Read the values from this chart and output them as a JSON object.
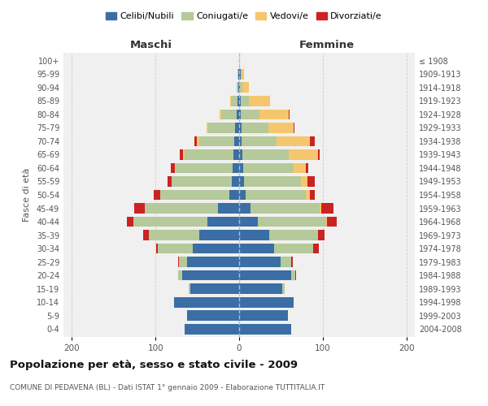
{
  "age_groups": [
    "0-4",
    "5-9",
    "10-14",
    "15-19",
    "20-24",
    "25-29",
    "30-34",
    "35-39",
    "40-44",
    "45-49",
    "50-54",
    "55-59",
    "60-64",
    "65-69",
    "70-74",
    "75-79",
    "80-84",
    "85-89",
    "90-94",
    "95-99",
    "100+"
  ],
  "birth_years": [
    "2004-2008",
    "1999-2003",
    "1994-1998",
    "1989-1993",
    "1984-1988",
    "1979-1983",
    "1974-1978",
    "1969-1973",
    "1964-1968",
    "1959-1963",
    "1954-1958",
    "1949-1953",
    "1944-1948",
    "1939-1943",
    "1934-1938",
    "1929-1933",
    "1924-1928",
    "1919-1923",
    "1914-1918",
    "1909-1913",
    "≤ 1908"
  ],
  "maschi": {
    "celibi": [
      65,
      62,
      78,
      58,
      68,
      62,
      55,
      48,
      38,
      25,
      12,
      9,
      8,
      7,
      6,
      5,
      3,
      2,
      1,
      1,
      0
    ],
    "coniugati": [
      0,
      0,
      0,
      2,
      5,
      10,
      42,
      60,
      88,
      88,
      82,
      72,
      68,
      58,
      42,
      32,
      18,
      8,
      2,
      1,
      0
    ],
    "vedovi": [
      0,
      0,
      0,
      0,
      0,
      0,
      0,
      0,
      0,
      0,
      0,
      0,
      1,
      2,
      3,
      2,
      2,
      1,
      0,
      0,
      0
    ],
    "divorziati": [
      0,
      0,
      0,
      0,
      0,
      1,
      2,
      7,
      8,
      12,
      8,
      5,
      5,
      4,
      2,
      0,
      0,
      0,
      0,
      0,
      0
    ]
  },
  "femmine": {
    "nubili": [
      62,
      58,
      65,
      52,
      62,
      50,
      42,
      36,
      22,
      14,
      8,
      6,
      5,
      4,
      3,
      3,
      2,
      2,
      1,
      2,
      0
    ],
    "coniugate": [
      0,
      0,
      0,
      2,
      5,
      12,
      46,
      58,
      82,
      82,
      72,
      68,
      60,
      55,
      42,
      32,
      22,
      10,
      3,
      1,
      0
    ],
    "vedove": [
      0,
      0,
      0,
      0,
      0,
      0,
      0,
      0,
      1,
      2,
      5,
      8,
      15,
      35,
      40,
      30,
      35,
      25,
      8,
      3,
      0
    ],
    "divorziate": [
      0,
      0,
      0,
      0,
      1,
      2,
      7,
      8,
      12,
      15,
      5,
      8,
      3,
      2,
      5,
      1,
      1,
      0,
      0,
      0,
      0
    ]
  },
  "colors": {
    "celibi": "#3A6EA5",
    "coniugati": "#B5C99A",
    "vedovi": "#F5C66D",
    "divorziati": "#CC2222"
  },
  "title": "Popolazione per età, sesso e stato civile - 2009",
  "subtitle": "COMUNE DI PEDAVENA (BL) - Dati ISTAT 1° gennaio 2009 - Elaborazione TUTTITALIA.IT",
  "xlabel_left": "Maschi",
  "xlabel_right": "Femmine",
  "ylabel_left": "Fasce di età",
  "xlim": 210,
  "background_color": "#f0f0f0",
  "grid_color": "#cccccc"
}
